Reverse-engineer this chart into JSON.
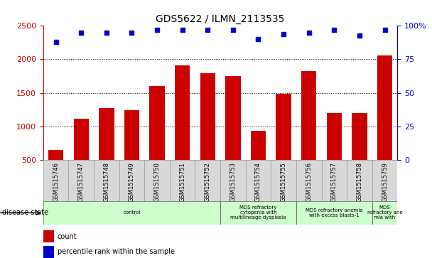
{
  "title": "GDS5622 / ILMN_2113535",
  "samples": [
    "GSM1515746",
    "GSM1515747",
    "GSM1515748",
    "GSM1515749",
    "GSM1515750",
    "GSM1515751",
    "GSM1515752",
    "GSM1515753",
    "GSM1515754",
    "GSM1515755",
    "GSM1515756",
    "GSM1515757",
    "GSM1515758",
    "GSM1515759"
  ],
  "counts": [
    650,
    1110,
    1270,
    1240,
    1600,
    1910,
    1790,
    1750,
    940,
    1490,
    1820,
    1200,
    1200,
    2060
  ],
  "percentiles": [
    88,
    95,
    95,
    95,
    97,
    97,
    97,
    97,
    90,
    94,
    95,
    97,
    93,
    97
  ],
  "bar_color": "#cc0000",
  "dot_color": "#0000cc",
  "ylim_left": [
    500,
    2500
  ],
  "ylim_right": [
    0,
    100
  ],
  "yticks_left": [
    500,
    1000,
    1500,
    2000,
    2500
  ],
  "yticks_right": [
    0,
    25,
    50,
    75,
    100
  ],
  "right_tick_labels": [
    "0",
    "25",
    "50",
    "75",
    "100%"
  ],
  "disease_groups": [
    {
      "label": "control",
      "start": 0,
      "end": 6,
      "color": "#ccffcc"
    },
    {
      "label": "MDS refractory\ncytopenia with\nmultilineage dysplasia",
      "start": 7,
      "end": 9,
      "color": "#ccffcc"
    },
    {
      "label": "MDS refractory anemia\nwith excess blasts-1",
      "start": 10,
      "end": 12,
      "color": "#ccffcc"
    },
    {
      "label": "MDS\nrefractory ane\nmia with",
      "start": 13,
      "end": 13,
      "color": "#ccffcc"
    }
  ],
  "legend_count_label": "count",
  "legend_pct_label": "percentile rank within the sample",
  "disease_state_label": "disease state",
  "bg_color": "#ffffff",
  "bar_color_r": "#cc0000",
  "dot_color_b": "#0000cc",
  "tick_color_left": "#cc0000",
  "tick_color_right": "#0000cc",
  "sample_box_color": "#cccccc",
  "sample_box_edge": "#888888"
}
